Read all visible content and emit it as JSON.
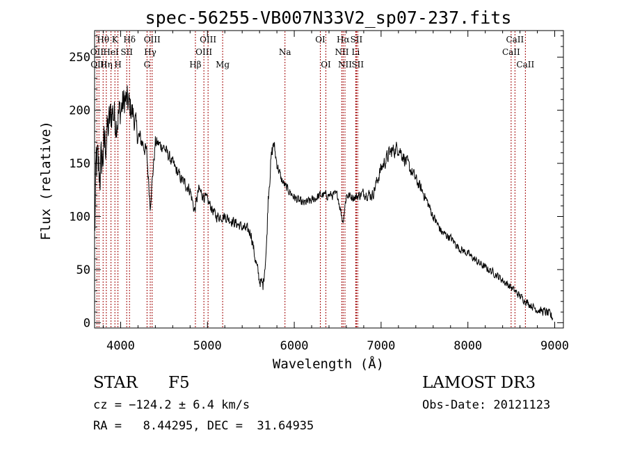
{
  "chart_data": {
    "type": "line",
    "title": "spec-56255-VB007N33V2_sp07-237.fits",
    "xlabel": "Wavelength (Å)",
    "ylabel": "Flux (relative)",
    "xlim": [
      3700,
      9100
    ],
    "ylim": [
      -5,
      275
    ],
    "xticks": [
      4000,
      5000,
      6000,
      7000,
      8000,
      9000
    ],
    "yticks": [
      0,
      50,
      100,
      150,
      200,
      250
    ],
    "x_tick_labels": [
      "4000",
      "5000",
      "6000",
      "7000",
      "8000",
      "9000"
    ],
    "y_tick_labels": [
      "0",
      "50",
      "100",
      "150",
      "200",
      "250"
    ],
    "line_color": "#000000",
    "marker_color": "#a00000",
    "spectrum_anchors": {
      "x": [
        3700,
        3720,
        3760,
        3800,
        3850,
        3900,
        3950,
        4000,
        4050,
        4100,
        4150,
        4200,
        4250,
        4300,
        4340,
        4400,
        4500,
        4600,
        4700,
        4800,
        4850,
        4900,
        5000,
        5100,
        5200,
        5300,
        5400,
        5500,
        5550,
        5600,
        5640,
        5680,
        5700,
        5730,
        5760,
        5800,
        5850,
        5900,
        6000,
        6100,
        6200,
        6300,
        6400,
        6500,
        6560,
        6600,
        6700,
        6800,
        6900,
        7000,
        7100,
        7200,
        7300,
        7400,
        7500,
        7600,
        7700,
        7800,
        7900,
        8000,
        8100,
        8200,
        8300,
        8400,
        8500,
        8600,
        8700,
        8800,
        8900,
        8980
      ],
      "flux": [
        80,
        150,
        140,
        160,
        180,
        200,
        190,
        200,
        210,
        205,
        195,
        175,
        170,
        160,
        110,
        170,
        165,
        150,
        135,
        125,
        105,
        125,
        115,
        100,
        100,
        95,
        90,
        85,
        60,
        40,
        35,
        70,
        120,
        150,
        170,
        150,
        135,
        128,
        118,
        112,
        115,
        120,
        120,
        120,
        95,
        120,
        118,
        122,
        120,
        145,
        160,
        165,
        150,
        135,
        120,
        100,
        85,
        80,
        70,
        65,
        58,
        52,
        47,
        40,
        33,
        25,
        18,
        12,
        10,
        5
      ],
      "noise": [
        40,
        40,
        35,
        35,
        30,
        28,
        25,
        25,
        22,
        20,
        18,
        14,
        12,
        10,
        8,
        9,
        8,
        8,
        8,
        8,
        8,
        8,
        7,
        7,
        7,
        7,
        7,
        8,
        8,
        8,
        8,
        10,
        12,
        12,
        10,
        8,
        6,
        6,
        6,
        6,
        6,
        6,
        6,
        6,
        6,
        6,
        6,
        7,
        8,
        9,
        10,
        10,
        9,
        8,
        7,
        6,
        6,
        5,
        5,
        5,
        5,
        5,
        5,
        5,
        5,
        5,
        5,
        5,
        6,
        7
      ]
    },
    "lines": [
      {
        "label": "Hθ",
        "wave": 3798,
        "row": 0
      },
      {
        "label": "K",
        "wave": 3934,
        "row": 0
      },
      {
        "label": "Hδ",
        "wave": 4102,
        "row": 0
      },
      {
        "label": "OIII",
        "wave": 4363,
        "row": 0
      },
      {
        "label": "OIII",
        "wave": 5007,
        "row": 0
      },
      {
        "label": "OI",
        "wave": 6300,
        "row": 0
      },
      {
        "label": "Hα",
        "wave": 6563,
        "row": 0
      },
      {
        "label": "SII",
        "wave": 6716,
        "row": 0
      },
      {
        "label": "CaII",
        "wave": 8542,
        "row": 0
      },
      {
        "label": "OII",
        "wave": 3727,
        "row": 1
      },
      {
        "label": "HeI",
        "wave": 3889,
        "row": 1
      },
      {
        "label": "SII",
        "wave": 4070,
        "row": 1
      },
      {
        "label": "Hγ",
        "wave": 4341,
        "row": 1
      },
      {
        "label": "OIII",
        "wave": 4959,
        "row": 1
      },
      {
        "label": "Na",
        "wave": 5893,
        "row": 1
      },
      {
        "label": "NII",
        "wave": 6548,
        "row": 1
      },
      {
        "label": "Li",
        "wave": 6708,
        "row": 1
      },
      {
        "label": "CaII",
        "wave": 8498,
        "row": 1
      },
      {
        "label": "OIII",
        "wave": 3750,
        "row": 2
      },
      {
        "label": "Hη",
        "wave": 3835,
        "row": 2
      },
      {
        "label": "H",
        "wave": 3969,
        "row": 2
      },
      {
        "label": "G",
        "wave": 4304,
        "row": 2
      },
      {
        "label": "Hβ",
        "wave": 4861,
        "row": 2
      },
      {
        "label": "Mg",
        "wave": 5175,
        "row": 2
      },
      {
        "label": "OI",
        "wave": 6364,
        "row": 2
      },
      {
        "label": "NII",
        "wave": 6584,
        "row": 2
      },
      {
        "label": "SII",
        "wave": 6731,
        "row": 2
      },
      {
        "label": "CaII",
        "wave": 8662,
        "row": 2
      }
    ]
  },
  "info": {
    "object_class": "STAR",
    "subclass": "F5",
    "survey": "LAMOST DR3",
    "cz": "cz = −124.2 ± 6.4 km/s",
    "obs_date": "Obs-Date: 20121123",
    "coords": "RA =   8.44295, DEC =  31.64935"
  }
}
